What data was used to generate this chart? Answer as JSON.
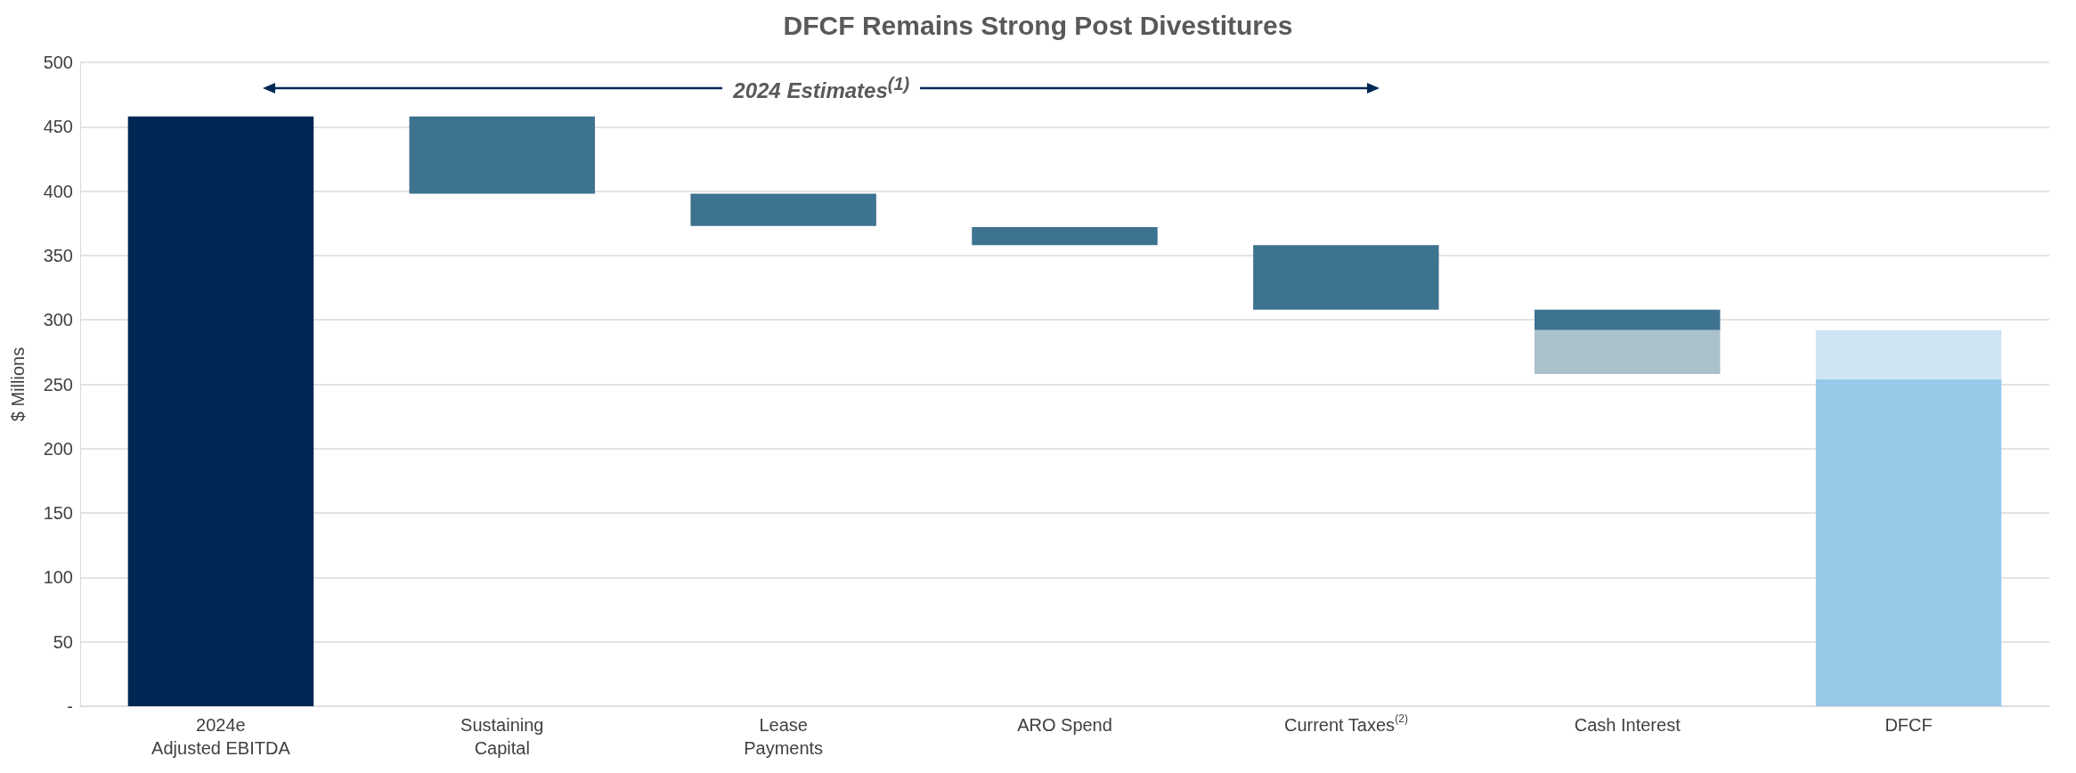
{
  "chart_data": {
    "type": "bar",
    "title": "DFCF Remains Strong Post Divestitures",
    "ylabel": "$ Millions",
    "categories": [
      "2024e\nAdjusted EBITDA",
      "Sustaining\nCapital",
      "Lease\nPayments",
      "ARO Spend",
      "Current Taxes$^{(2)}$",
      "Cash Interest",
      "DFCF"
    ],
    "series": [
      {
        "values": [
          458,
          60,
          25,
          14,
          50,
          16,
          254
        ],
        "base": [
          0,
          398,
          373,
          358,
          308,
          292,
          0
        ],
        "colors": [
          "#002855",
          "#3e738f",
          "#3e738f",
          "#3e738f",
          "#3e738f",
          "#3e738f",
          "#99c9e9"
        ]
      },
      {
        "values": [
          null,
          null,
          null,
          null,
          null,
          34,
          38
        ],
        "base": [
          null,
          null,
          null,
          null,
          null,
          258,
          254
        ],
        "colors": [
          null,
          null,
          null,
          null,
          null,
          "#abc1cc",
          "#cfe5f3"
        ]
      }
    ],
    "ylim": [
      0,
      500
    ],
    "yticks": [
      {
        "value": 0,
        "label": "-"
      },
      50,
      100,
      150,
      200,
      250,
      300,
      350,
      400,
      450,
      500
    ],
    "grid": "y",
    "annotations": [
      "2024 Estimates$^{(1)}$"
    ]
  }
}
